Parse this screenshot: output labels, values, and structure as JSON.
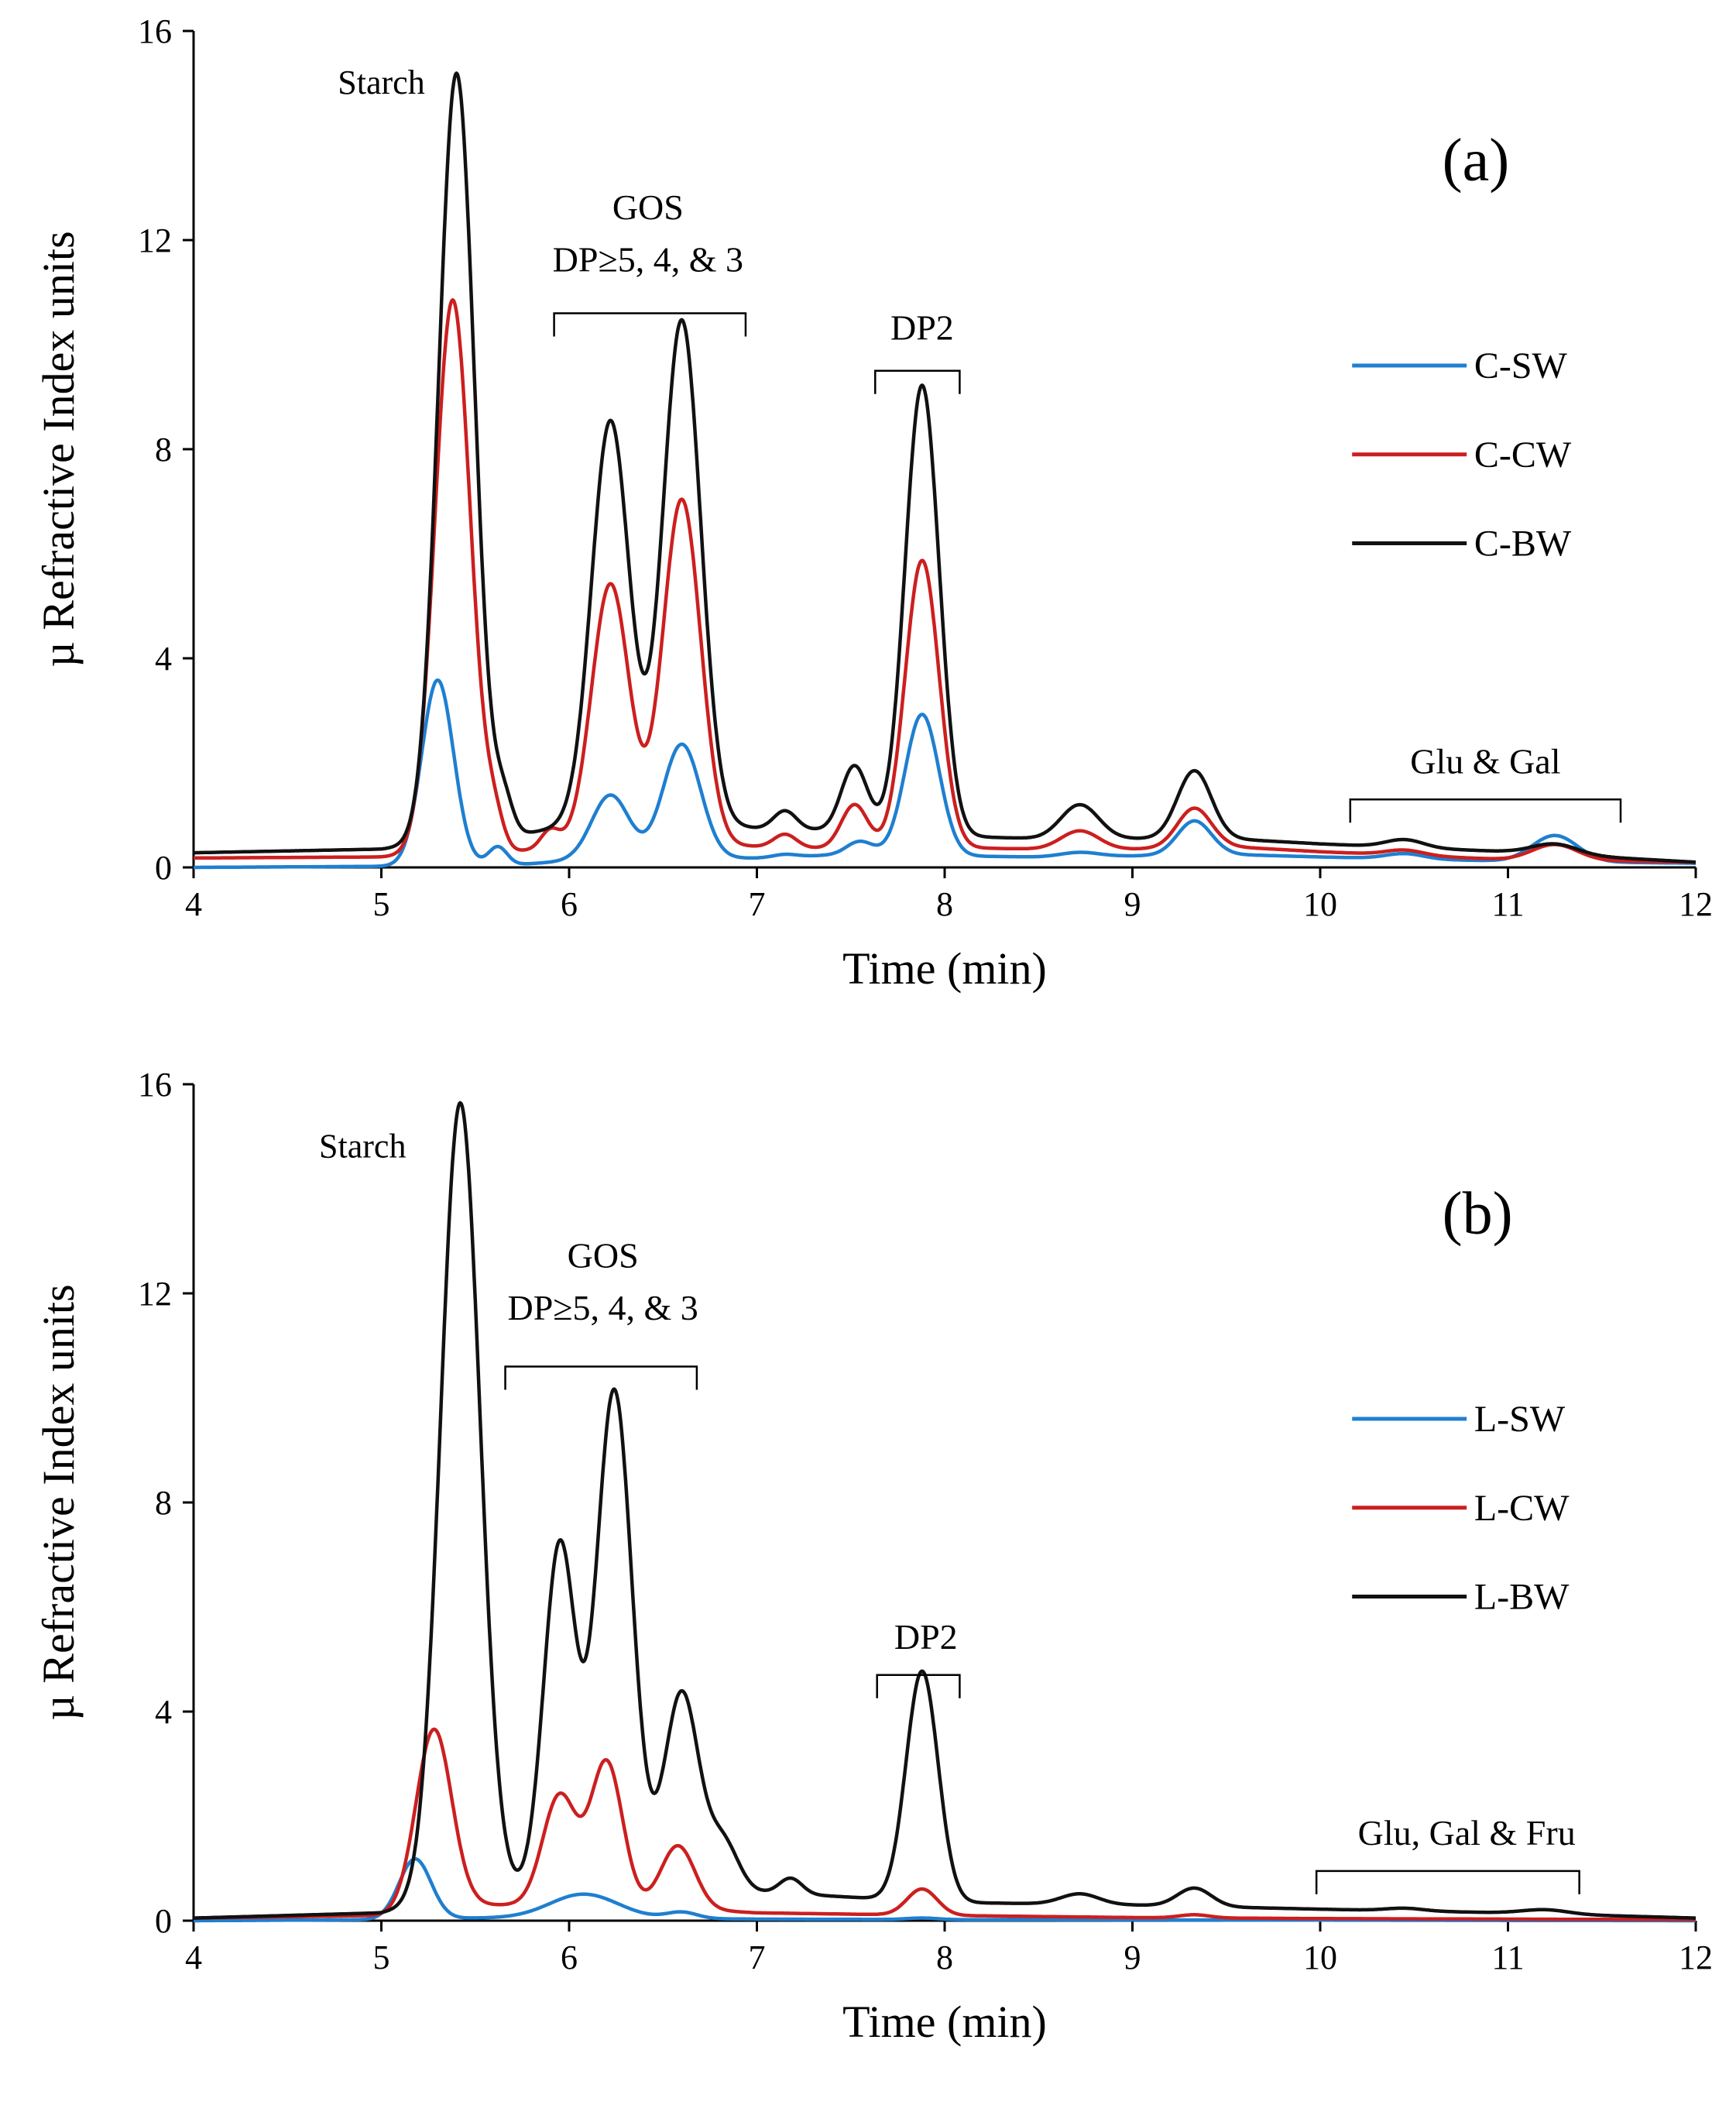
{
  "chart_data": [
    {
      "type": "line",
      "panel_label": "(a)",
      "xlabel": "Time (min)",
      "ylabel": "µ Refractive Index units",
      "xlim": [
        4,
        12
      ],
      "ylim": [
        0,
        16
      ],
      "x_ticks": [
        "4",
        "5",
        "6",
        "7",
        "8",
        "9",
        "10",
        "11",
        "12"
      ],
      "y_ticks": [
        "0",
        "4",
        "8",
        "12",
        "16"
      ],
      "legend": [
        {
          "name": "C-SW",
          "color": "#1f7fd0"
        },
        {
          "name": "C-CW",
          "color": "#cc1f1f"
        },
        {
          "name": "C-BW",
          "color": "#111111"
        }
      ],
      "annotations": [
        {
          "text": "Starch",
          "x": 5.0,
          "y": 14.8
        },
        {
          "text": "GOS",
          "x": 6.42,
          "y": 12.4
        },
        {
          "text": "DP≥5, 4, & 3",
          "x": 6.42,
          "y": 11.4
        },
        {
          "text": "DP2",
          "x": 7.88,
          "y": 10.1
        },
        {
          "text": "Glu & Gal",
          "x": 10.88,
          "y": 1.8
        }
      ],
      "brackets": [
        {
          "x1": 5.92,
          "x2": 6.94,
          "y": 10.6
        },
        {
          "x1": 7.63,
          "x2": 8.08,
          "y": 9.5
        },
        {
          "x1": 10.16,
          "x2": 11.6,
          "y": 1.3
        }
      ],
      "series": [
        {
          "name": "C-SW",
          "color": "#1f7fd0",
          "baseline": [
            [
              4,
              0
            ],
            [
              5,
              0.02
            ],
            [
              5.7,
              0.05
            ],
            [
              6,
              0.12
            ],
            [
              7,
              0.18
            ],
            [
              7.5,
              0.25
            ],
            [
              8,
              0.22
            ],
            [
              8.5,
              0.2
            ],
            [
              9,
              0.22
            ],
            [
              9.5,
              0.25
            ],
            [
              10,
              0.2
            ],
            [
              11,
              0.12
            ],
            [
              12,
              0.08
            ]
          ],
          "peaks": [
            {
              "center": 5.3,
              "height": 3.55,
              "width": 0.085
            },
            {
              "center": 5.62,
              "height": 0.35,
              "width": 0.05
            },
            {
              "center": 6.22,
              "height": 1.25,
              "width": 0.1
            },
            {
              "center": 6.6,
              "height": 2.2,
              "width": 0.1
            },
            {
              "center": 7.15,
              "height": 0.05,
              "width": 0.06
            },
            {
              "center": 7.55,
              "height": 0.25,
              "width": 0.07
            },
            {
              "center": 7.88,
              "height": 2.7,
              "width": 0.09
            },
            {
              "center": 8.72,
              "height": 0.08,
              "width": 0.1
            },
            {
              "center": 9.33,
              "height": 0.65,
              "width": 0.09
            },
            {
              "center": 10.45,
              "height": 0.1,
              "width": 0.1
            },
            {
              "center": 11.25,
              "height": 0.5,
              "width": 0.12
            }
          ]
        },
        {
          "name": "C-CW",
          "color": "#cc1f1f",
          "baseline": [
            [
              4,
              0.18
            ],
            [
              5,
              0.2
            ],
            [
              5.7,
              0.3
            ],
            [
              6,
              0.4
            ],
            [
              6.5,
              0.45
            ],
            [
              7,
              0.4
            ],
            [
              7.5,
              0.35
            ],
            [
              8,
              0.38
            ],
            [
              8.5,
              0.35
            ],
            [
              9,
              0.35
            ],
            [
              9.5,
              0.4
            ],
            [
              10,
              0.3
            ],
            [
              11,
              0.15
            ],
            [
              12,
              0.1
            ]
          ],
          "peaks": [
            {
              "center": 5.38,
              "height": 10.6,
              "width": 0.095
            },
            {
              "center": 5.6,
              "height": 0.6,
              "width": 0.05
            },
            {
              "center": 5.9,
              "height": 0.35,
              "width": 0.05
            },
            {
              "center": 6.22,
              "height": 5.0,
              "width": 0.1
            },
            {
              "center": 6.6,
              "height": 6.6,
              "width": 0.1
            },
            {
              "center": 7.15,
              "height": 0.25,
              "width": 0.06
            },
            {
              "center": 7.52,
              "height": 0.85,
              "width": 0.07
            },
            {
              "center": 7.88,
              "height": 5.5,
              "width": 0.09
            },
            {
              "center": 8.72,
              "height": 0.35,
              "width": 0.1
            },
            {
              "center": 9.33,
              "height": 0.75,
              "width": 0.09
            },
            {
              "center": 10.45,
              "height": 0.1,
              "width": 0.1
            },
            {
              "center": 11.25,
              "height": 0.3,
              "width": 0.12
            }
          ]
        },
        {
          "name": "C-BW",
          "color": "#111111",
          "baseline": [
            [
              4,
              0.28
            ],
            [
              5,
              0.35
            ],
            [
              5.7,
              0.6
            ],
            [
              6,
              0.8
            ],
            [
              6.5,
              0.9
            ],
            [
              7,
              0.75
            ],
            [
              7.5,
              0.7
            ],
            [
              8,
              0.6
            ],
            [
              8.5,
              0.55
            ],
            [
              9,
              0.55
            ],
            [
              9.5,
              0.55
            ],
            [
              10,
              0.45
            ],
            [
              11,
              0.3
            ],
            [
              12,
              0.1
            ]
          ],
          "peaks": [
            {
              "center": 5.4,
              "height": 14.7,
              "width": 0.095
            },
            {
              "center": 5.65,
              "height": 0.7,
              "width": 0.05
            },
            {
              "center": 6.22,
              "height": 7.7,
              "width": 0.1
            },
            {
              "center": 6.6,
              "height": 9.6,
              "width": 0.1
            },
            {
              "center": 7.15,
              "height": 0.35,
              "width": 0.06
            },
            {
              "center": 7.52,
              "height": 1.25,
              "width": 0.07
            },
            {
              "center": 7.88,
              "height": 8.6,
              "width": 0.09
            },
            {
              "center": 8.72,
              "height": 0.65,
              "width": 0.1
            },
            {
              "center": 9.33,
              "height": 1.3,
              "width": 0.09
            },
            {
              "center": 10.45,
              "height": 0.15,
              "width": 0.1
            },
            {
              "center": 11.25,
              "height": 0.2,
              "width": 0.12
            }
          ]
        }
      ]
    },
    {
      "type": "line",
      "panel_label": "(b)",
      "xlabel": "Time (min)",
      "ylabel": "µ Refractive Index units",
      "xlim": [
        4,
        12
      ],
      "ylim": [
        0,
        16
      ],
      "x_ticks": [
        "4",
        "5",
        "6",
        "7",
        "8",
        "9",
        "10",
        "11",
        "12"
      ],
      "y_ticks": [
        "0",
        "4",
        "8",
        "12",
        "16"
      ],
      "legend": [
        {
          "name": "L-SW",
          "color": "#1f7fd0"
        },
        {
          "name": "L-CW",
          "color": "#cc1f1f"
        },
        {
          "name": "L-BW",
          "color": "#111111"
        }
      ],
      "annotations": [
        {
          "text": "Starch",
          "x": 4.9,
          "y": 14.6
        },
        {
          "text": "GOS",
          "x": 6.18,
          "y": 12.5
        },
        {
          "text": "DP≥5, 4, & 3",
          "x": 6.18,
          "y": 11.5
        },
        {
          "text": "DP2",
          "x": 7.9,
          "y": 5.2
        },
        {
          "text": "Glu, Gal & Fru",
          "x": 10.78,
          "y": 1.45
        }
      ],
      "brackets": [
        {
          "x1": 5.66,
          "x2": 6.68,
          "y": 10.6
        },
        {
          "x1": 7.64,
          "x2": 8.08,
          "y": 4.7
        },
        {
          "x1": 9.98,
          "x2": 11.38,
          "y": 0.95
        }
      ],
      "series": [
        {
          "name": "L-SW",
          "color": "#1f7fd0",
          "baseline": [
            [
              4,
              0
            ],
            [
              5,
              0.02
            ],
            [
              5.5,
              0.05
            ],
            [
              6,
              0.06
            ],
            [
              7,
              0.03
            ],
            [
              8,
              0.02
            ],
            [
              10,
              0.01
            ],
            [
              12,
              0
            ]
          ],
          "peaks": [
            {
              "center": 5.18,
              "height": 1.15,
              "width": 0.085
            },
            {
              "center": 6.08,
              "height": 0.45,
              "width": 0.18
            },
            {
              "center": 6.6,
              "height": 0.12,
              "width": 0.08
            },
            {
              "center": 7.88,
              "height": 0.03,
              "width": 0.08
            }
          ]
        },
        {
          "name": "L-CW",
          "color": "#cc1f1f",
          "baseline": [
            [
              4,
              0.05
            ],
            [
              5,
              0.1
            ],
            [
              5.5,
              0.3
            ],
            [
              6,
              0.3
            ],
            [
              6.5,
              0.25
            ],
            [
              7,
              0.15
            ],
            [
              8,
              0.1
            ],
            [
              9,
              0.06
            ],
            [
              10,
              0.04
            ],
            [
              12,
              0.02
            ]
          ],
          "peaks": [
            {
              "center": 5.28,
              "height": 3.45,
              "width": 0.095
            },
            {
              "center": 5.95,
              "height": 2.1,
              "width": 0.09
            },
            {
              "center": 6.2,
              "height": 2.75,
              "width": 0.085
            },
            {
              "center": 6.58,
              "height": 1.2,
              "width": 0.09
            },
            {
              "center": 7.88,
              "height": 0.5,
              "width": 0.08
            },
            {
              "center": 9.33,
              "height": 0.06,
              "width": 0.08
            }
          ]
        },
        {
          "name": "L-BW",
          "color": "#111111",
          "baseline": [
            [
              4,
              0.05
            ],
            [
              5,
              0.15
            ],
            [
              5.5,
              0.5
            ],
            [
              6,
              0.6
            ],
            [
              6.5,
              0.7
            ],
            [
              7,
              0.55
            ],
            [
              7.5,
              0.45
            ],
            [
              8,
              0.35
            ],
            [
              9,
              0.3
            ],
            [
              10,
              0.22
            ],
            [
              11,
              0.15
            ],
            [
              12,
              0.05
            ]
          ],
          "peaks": [
            {
              "center": 5.42,
              "height": 15.2,
              "width": 0.105
            },
            {
              "center": 5.95,
              "height": 6.6,
              "width": 0.085
            },
            {
              "center": 6.24,
              "height": 9.5,
              "width": 0.095
            },
            {
              "center": 6.6,
              "height": 3.7,
              "width": 0.09
            },
            {
              "center": 6.82,
              "height": 0.9,
              "width": 0.08
            },
            {
              "center": 7.18,
              "height": 0.3,
              "width": 0.06
            },
            {
              "center": 7.88,
              "height": 4.4,
              "width": 0.085
            },
            {
              "center": 8.72,
              "height": 0.2,
              "width": 0.1
            },
            {
              "center": 9.33,
              "height": 0.35,
              "width": 0.09
            },
            {
              "center": 10.45,
              "height": 0.05,
              "width": 0.1
            },
            {
              "center": 11.2,
              "height": 0.08,
              "width": 0.12
            }
          ]
        }
      ]
    }
  ]
}
